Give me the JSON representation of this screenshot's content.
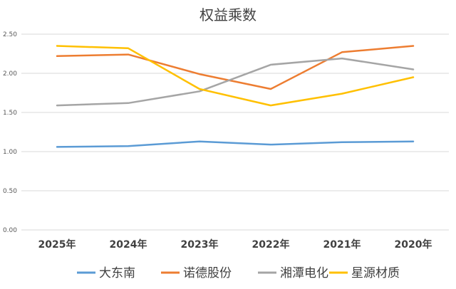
{
  "chart_data": {
    "type": "line",
    "title": "权益乘数",
    "categories": [
      "2025年",
      "2024年",
      "2023年",
      "2022年",
      "2021年",
      "2020年"
    ],
    "y_ticks": [
      "0.00",
      "0.50",
      "1.00",
      "1.50",
      "2.00",
      "2.50"
    ],
    "ylim": [
      0,
      2.5
    ],
    "grid": true,
    "legend_position": "bottom",
    "series": [
      {
        "name": "大东南",
        "color": "#5B9BD5",
        "values": [
          1.06,
          1.07,
          1.13,
          1.09,
          1.12,
          1.13
        ]
      },
      {
        "name": "诺德股份",
        "color": "#ED7D31",
        "values": [
          2.22,
          2.24,
          1.99,
          1.8,
          2.27,
          2.35
        ]
      },
      {
        "name": "湘潭电化",
        "color": "#A5A5A5",
        "values": [
          1.59,
          1.62,
          1.77,
          2.11,
          2.19,
          2.05
        ]
      },
      {
        "name": "星源材质",
        "color": "#FFC000",
        "values": [
          2.35,
          2.32,
          1.8,
          1.59,
          1.74,
          1.95
        ]
      }
    ]
  }
}
